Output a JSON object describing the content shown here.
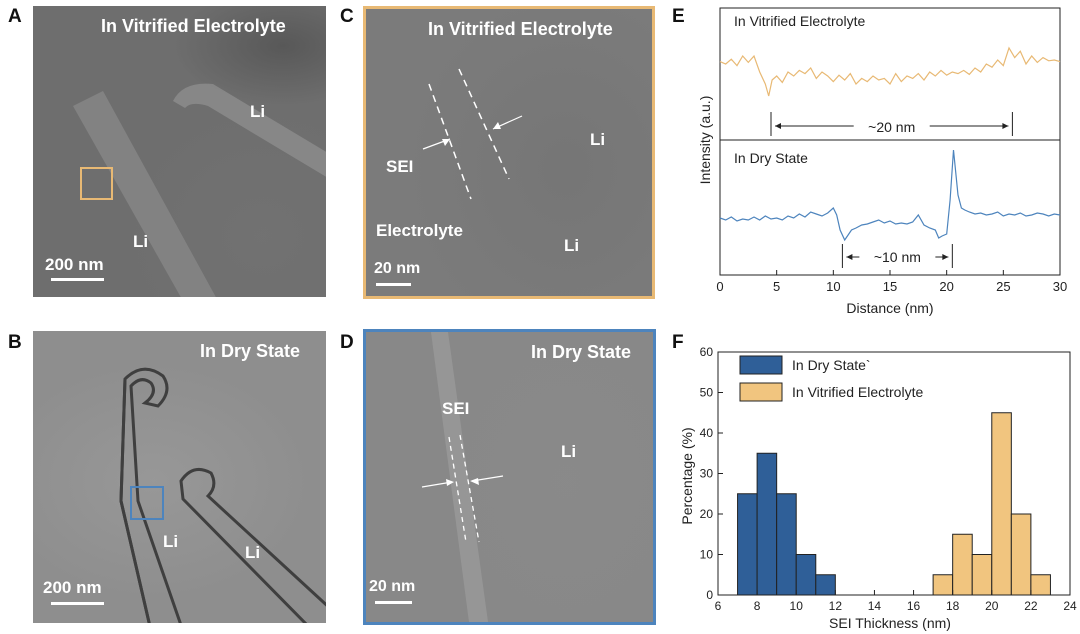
{
  "figure": {
    "panel_labels": {
      "a": "A",
      "b": "B",
      "c": "C",
      "d": "D",
      "e": "E",
      "f": "F"
    },
    "panel_a": {
      "title": "In Vitrified Electrolyte",
      "label_li_1": "Li",
      "label_li_2": "Li",
      "scale_bar": "200 nm"
    },
    "panel_b": {
      "title": "In Dry State",
      "label_li_1": "Li",
      "label_li_2": "Li",
      "scale_bar": "200 nm"
    },
    "panel_c": {
      "title": "In Vitrified Electrolyte",
      "label_sei": "SEI",
      "label_li_1": "Li",
      "label_li_2": "Li",
      "label_electrolyte": "Electrolyte",
      "scale_bar": "20 nm"
    },
    "panel_d": {
      "title": "In Dry State",
      "label_sei": "SEI",
      "label_li": "Li",
      "scale_bar": "20 nm"
    }
  },
  "colors": {
    "vitrified": "#e8b974",
    "dry": "#4d84bd",
    "vitrified_bar": "#f1c57f",
    "dry_bar": "#2f5f98",
    "axis": "#222222"
  },
  "chart_data": [
    {
      "type": "line",
      "panel": "E",
      "xlabel": "Distance (nm)",
      "ylabel": "Intensity (a.u.)",
      "xlim": [
        0,
        30
      ],
      "xticks": [
        "0",
        "5",
        "10",
        "15",
        "20",
        "25",
        "30"
      ],
      "subplots": [
        {
          "name": "In Vitrified Electrolyte",
          "color": "#e8b974",
          "annotation": "~20 nm",
          "annotation_range": [
            4.5,
            25.8
          ],
          "x": [
            0,
            0.5,
            1,
            1.5,
            2,
            2.5,
            3,
            3.5,
            4,
            4.3,
            4.6,
            5,
            5.5,
            6,
            6.5,
            7,
            7.5,
            8,
            8.5,
            9,
            9.5,
            10,
            10.5,
            11,
            11.5,
            12,
            12.5,
            13,
            13.5,
            14,
            14.5,
            15,
            15.5,
            16,
            16.5,
            17,
            17.5,
            18,
            18.5,
            19,
            19.5,
            20,
            20.5,
            21,
            21.5,
            22,
            22.5,
            23,
            23.5,
            24,
            24.5,
            25,
            25.5,
            26,
            26.5,
            27,
            27.5,
            28,
            28.5,
            29,
            29.5,
            30
          ],
          "y": [
            0.73,
            0.7,
            0.76,
            0.68,
            0.8,
            0.72,
            0.8,
            0.6,
            0.45,
            0.3,
            0.5,
            0.55,
            0.47,
            0.6,
            0.55,
            0.62,
            0.58,
            0.65,
            0.52,
            0.6,
            0.55,
            0.48,
            0.56,
            0.5,
            0.58,
            0.45,
            0.52,
            0.48,
            0.55,
            0.5,
            0.52,
            0.45,
            0.58,
            0.48,
            0.55,
            0.52,
            0.58,
            0.5,
            0.6,
            0.55,
            0.62,
            0.56,
            0.6,
            0.58,
            0.62,
            0.57,
            0.65,
            0.6,
            0.7,
            0.66,
            0.75,
            0.68,
            0.9,
            0.78,
            0.86,
            0.7,
            0.8,
            0.72,
            0.78,
            0.74,
            0.75,
            0.73
          ]
        },
        {
          "name": "In Dry State",
          "color": "#4d84bd",
          "annotation": "~10 nm",
          "annotation_range": [
            10.8,
            20.5
          ],
          "x": [
            0,
            0.5,
            1,
            1.5,
            2,
            2.5,
            3,
            3.5,
            4,
            4.5,
            5,
            5.5,
            6,
            6.5,
            7,
            7.5,
            8,
            8.5,
            9,
            9.5,
            10,
            10.3,
            10.6,
            11,
            11.3,
            11.6,
            12,
            12.5,
            13,
            13.5,
            14,
            14.5,
            15,
            15.5,
            16,
            16.5,
            17,
            17.5,
            18,
            18.5,
            19,
            19.3,
            19.6,
            20,
            20.3,
            20.6,
            21,
            21.3,
            21.6,
            22,
            22.5,
            23,
            23.5,
            24,
            24.5,
            25,
            25.5,
            26,
            26.5,
            27,
            27.5,
            28,
            28.5,
            29,
            29.5,
            30
          ],
          "y": [
            0.32,
            0.3,
            0.33,
            0.29,
            0.31,
            0.3,
            0.33,
            0.3,
            0.34,
            0.31,
            0.32,
            0.3,
            0.34,
            0.32,
            0.36,
            0.33,
            0.38,
            0.36,
            0.34,
            0.37,
            0.42,
            0.35,
            0.2,
            0.1,
            0.15,
            0.2,
            0.22,
            0.25,
            0.26,
            0.28,
            0.3,
            0.27,
            0.29,
            0.26,
            0.27,
            0.26,
            0.28,
            0.35,
            0.25,
            0.22,
            0.2,
            0.12,
            0.14,
            0.16,
            0.5,
            1.0,
            0.55,
            0.42,
            0.4,
            0.38,
            0.36,
            0.37,
            0.35,
            0.36,
            0.38,
            0.34,
            0.36,
            0.35,
            0.37,
            0.34,
            0.35,
            0.37,
            0.36,
            0.34,
            0.36,
            0.35
          ]
        }
      ]
    },
    {
      "type": "bar",
      "panel": "F",
      "xlabel": "SEI Thickness (nm)",
      "ylabel": "Percentage (%)",
      "xlim": [
        6,
        24
      ],
      "ylim": [
        0,
        60
      ],
      "xticks": [
        "6",
        "8",
        "10",
        "12",
        "14",
        "16",
        "18",
        "20",
        "22",
        "24"
      ],
      "yticks": [
        "0",
        "10",
        "20",
        "30",
        "40",
        "50",
        "60"
      ],
      "bin_width": 1,
      "series": [
        {
          "name": "In Dry State`",
          "color": "#2f5f98",
          "bin_starts": [
            7,
            8,
            9,
            10,
            11
          ],
          "values": [
            25,
            35,
            25,
            10,
            5
          ]
        },
        {
          "name": "In Vitrified Electrolyte",
          "color": "#f1c57f",
          "bin_starts": [
            17,
            18,
            19,
            20,
            21,
            22
          ],
          "values": [
            5,
            15,
            10,
            45,
            20,
            5
          ]
        }
      ]
    }
  ]
}
